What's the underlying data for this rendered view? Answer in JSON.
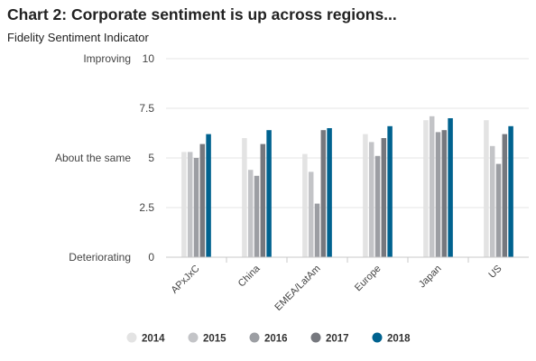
{
  "chart_data": {
    "type": "bar",
    "title": "Chart 2: Corporate sentiment is up across regions...",
    "subtitle": "Fidelity Sentiment Indicator",
    "categories": [
      "APxJxC",
      "China",
      "EMEA/LatAm",
      "Europe",
      "Japan",
      "US"
    ],
    "series": [
      {
        "name": "2014",
        "color": "#e3e3e3",
        "values": [
          5.3,
          6.0,
          5.2,
          6.2,
          6.9,
          6.9
        ]
      },
      {
        "name": "2015",
        "color": "#c3c4c7",
        "values": [
          5.3,
          4.4,
          4.3,
          5.8,
          7.1,
          5.6
        ]
      },
      {
        "name": "2016",
        "color": "#9c9ea3",
        "values": [
          5.0,
          4.1,
          2.7,
          5.1,
          6.3,
          4.7
        ]
      },
      {
        "name": "2017",
        "color": "#76787e",
        "values": [
          5.7,
          5.7,
          6.4,
          6.0,
          6.4,
          6.2
        ]
      },
      {
        "name": "2018",
        "color": "#00628f",
        "values": [
          6.2,
          6.4,
          6.5,
          6.6,
          7.0,
          6.6
        ]
      }
    ],
    "ylim": [
      0,
      10
    ],
    "yticks": [
      0,
      2.5,
      5,
      7.5,
      10
    ],
    "ytick_labels": [
      "0",
      "2.5",
      "5",
      "7.5",
      "10"
    ],
    "y_annotations": [
      {
        "value": 10,
        "text": "Improving"
      },
      {
        "value": 5,
        "text": "About the same"
      },
      {
        "value": 0,
        "text": "Deteriorating"
      }
    ],
    "grid": true,
    "legend": "bottom"
  }
}
